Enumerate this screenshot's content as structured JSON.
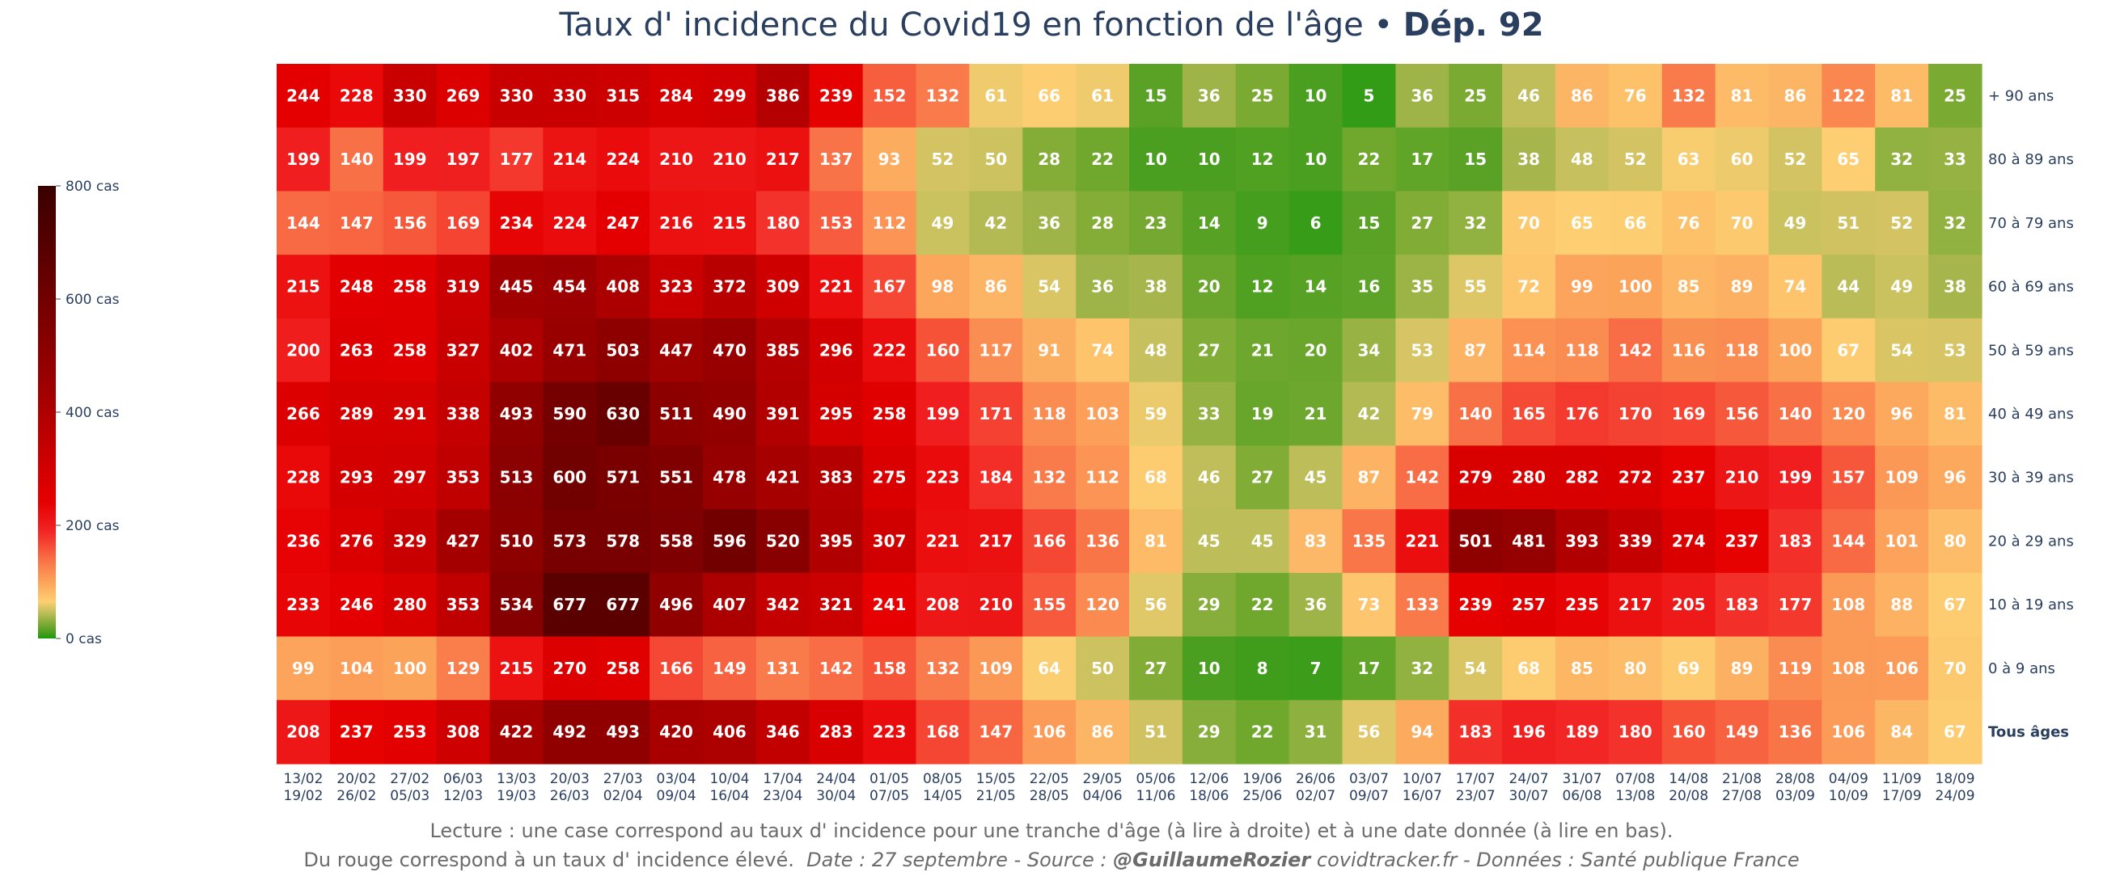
{
  "title": {
    "main": "Taux d' incidence du Covid19 en fonction de l'âge",
    "separator": " • ",
    "department": "Dép. 92"
  },
  "footer": {
    "line1": "Lecture : une case correspond au taux d' incidence pour une tranche d'âge (à lire à droite) et à une date donnée (à lire en bas).",
    "line2_plain": "Du rouge correspond à un taux d' incidence élevé.",
    "line2_italic_a": "Date : 27 septembre - Source : ",
    "line2_bold": "@GuillaumeRozier",
    "line2_italic_b": " covidtracker.fr - Données : Santé publique France"
  },
  "chart_data": {
    "type": "heatmap",
    "title": "Taux d' incidence du Covid19 en fonction de l'âge • Dép. 92",
    "rows": [
      "+ 90 ans",
      "80 à 89 ans",
      "70 à 79 ans",
      "60 à 69 ans",
      "50 à 59 ans",
      "40 à 49 ans",
      "30 à 39 ans",
      "20 à 29 ans",
      "10 à 19 ans",
      "0 à 9 ans",
      "Tous âges"
    ],
    "columns": [
      [
        "13/02",
        "19/02"
      ],
      [
        "20/02",
        "26/02"
      ],
      [
        "27/02",
        "05/03"
      ],
      [
        "06/03",
        "12/03"
      ],
      [
        "13/03",
        "19/03"
      ],
      [
        "20/03",
        "26/03"
      ],
      [
        "27/03",
        "02/04"
      ],
      [
        "03/04",
        "09/04"
      ],
      [
        "10/04",
        "16/04"
      ],
      [
        "17/04",
        "23/04"
      ],
      [
        "24/04",
        "30/04"
      ],
      [
        "01/05",
        "07/05"
      ],
      [
        "08/05",
        "14/05"
      ],
      [
        "15/05",
        "21/05"
      ],
      [
        "22/05",
        "28/05"
      ],
      [
        "29/05",
        "04/06"
      ],
      [
        "05/06",
        "11/06"
      ],
      [
        "12/06",
        "18/06"
      ],
      [
        "19/06",
        "25/06"
      ],
      [
        "26/06",
        "02/07"
      ],
      [
        "03/07",
        "09/07"
      ],
      [
        "10/07",
        "16/07"
      ],
      [
        "17/07",
        "23/07"
      ],
      [
        "24/07",
        "30/07"
      ],
      [
        "31/07",
        "06/08"
      ],
      [
        "07/08",
        "13/08"
      ],
      [
        "14/08",
        "20/08"
      ],
      [
        "21/08",
        "27/08"
      ],
      [
        "28/08",
        "03/09"
      ],
      [
        "04/09",
        "10/09"
      ],
      [
        "11/09",
        "17/09"
      ],
      [
        "18/09",
        "24/09"
      ]
    ],
    "values": [
      [
        244,
        228,
        330,
        269,
        330,
        330,
        315,
        284,
        299,
        386,
        239,
        152,
        132,
        61,
        66,
        61,
        15,
        36,
        25,
        10,
        5,
        36,
        25,
        46,
        86,
        76,
        132,
        81,
        86,
        122,
        81,
        25
      ],
      [
        199,
        140,
        199,
        197,
        177,
        214,
        224,
        210,
        210,
        217,
        137,
        93,
        52,
        50,
        28,
        22,
        10,
        10,
        12,
        10,
        22,
        17,
        15,
        38,
        48,
        52,
        63,
        60,
        52,
        65,
        32,
        33
      ],
      [
        144,
        147,
        156,
        169,
        234,
        224,
        247,
        216,
        215,
        180,
        153,
        112,
        49,
        42,
        36,
        28,
        23,
        14,
        9,
        6,
        15,
        27,
        32,
        70,
        65,
        66,
        76,
        70,
        49,
        51,
        52,
        32
      ],
      [
        215,
        248,
        258,
        319,
        445,
        454,
        408,
        323,
        372,
        309,
        221,
        167,
        98,
        86,
        54,
        36,
        38,
        20,
        12,
        14,
        16,
        35,
        55,
        72,
        99,
        100,
        85,
        89,
        74,
        44,
        49,
        38
      ],
      [
        200,
        263,
        258,
        327,
        402,
        471,
        503,
        447,
        470,
        385,
        296,
        222,
        160,
        117,
        91,
        74,
        48,
        27,
        21,
        20,
        34,
        53,
        87,
        114,
        118,
        142,
        116,
        118,
        100,
        67,
        54,
        53
      ],
      [
        266,
        289,
        291,
        338,
        493,
        590,
        630,
        511,
        490,
        391,
        295,
        258,
        199,
        171,
        118,
        103,
        59,
        33,
        19,
        21,
        42,
        79,
        140,
        165,
        176,
        170,
        169,
        156,
        140,
        120,
        96,
        81
      ],
      [
        228,
        293,
        297,
        353,
        513,
        600,
        571,
        551,
        478,
        421,
        383,
        275,
        223,
        184,
        132,
        112,
        68,
        46,
        27,
        45,
        87,
        142,
        279,
        280,
        282,
        272,
        237,
        210,
        199,
        157,
        109,
        96
      ],
      [
        236,
        276,
        329,
        427,
        510,
        573,
        578,
        558,
        596,
        520,
        395,
        307,
        221,
        217,
        166,
        136,
        81,
        45,
        45,
        83,
        135,
        221,
        501,
        481,
        393,
        339,
        274,
        237,
        183,
        144,
        101,
        80
      ],
      [
        233,
        246,
        280,
        353,
        534,
        677,
        677,
        496,
        407,
        342,
        321,
        241,
        208,
        210,
        155,
        120,
        56,
        29,
        22,
        36,
        73,
        133,
        239,
        257,
        235,
        217,
        205,
        183,
        177,
        108,
        88,
        67
      ],
      [
        99,
        104,
        100,
        129,
        215,
        270,
        258,
        166,
        149,
        131,
        142,
        158,
        132,
        109,
        64,
        50,
        27,
        10,
        8,
        7,
        17,
        32,
        54,
        68,
        85,
        80,
        69,
        89,
        119,
        108,
        106,
        70
      ],
      [
        208,
        237,
        253,
        308,
        422,
        492,
        493,
        420,
        406,
        346,
        283,
        223,
        168,
        147,
        106,
        86,
        51,
        29,
        22,
        31,
        56,
        94,
        183,
        196,
        189,
        180,
        160,
        149,
        136,
        106,
        84,
        67
      ]
    ],
    "bold_row": "Tous âges",
    "colorbar": {
      "range": [
        0,
        800
      ],
      "ticks": [
        0,
        200,
        400,
        600,
        800
      ],
      "tick_labels": [
        "0 cas",
        "200 cas",
        "400 cas",
        "600 cas",
        "800 cas"
      ],
      "colorscale": [
        [
          0,
          "#1a9a0b"
        ],
        [
          10,
          "#4a9e20"
        ],
        [
          25,
          "#7aaa32"
        ],
        [
          45,
          "#bdbd5a"
        ],
        [
          65,
          "#fdcf72"
        ],
        [
          100,
          "#fca35a"
        ],
        [
          140,
          "#f87046"
        ],
        [
          190,
          "#f22424"
        ],
        [
          240,
          "#e60000"
        ],
        [
          330,
          "#c80000"
        ],
        [
          430,
          "#a40000"
        ],
        [
          550,
          "#800000"
        ],
        [
          680,
          "#5a0000"
        ],
        [
          800,
          "#3a0000"
        ]
      ]
    }
  }
}
